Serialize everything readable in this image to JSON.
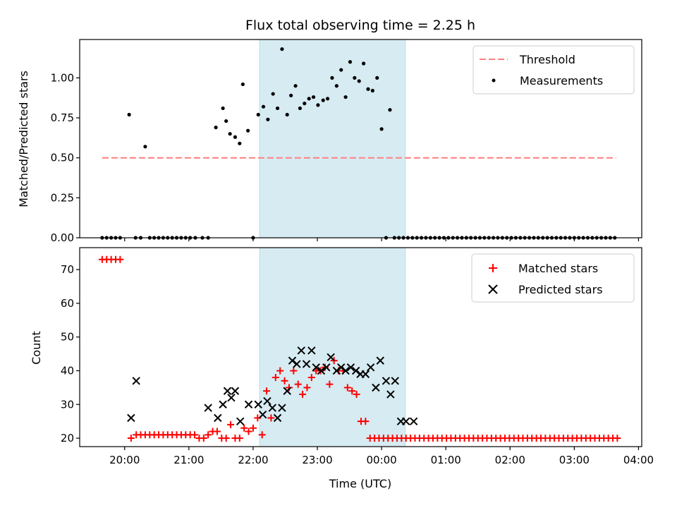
{
  "chart_data": [
    {
      "type": "scatter",
      "title": "Flux total observing time = 2.25 h",
      "ylabel": "Matched/Predicted stars",
      "xlabel": "",
      "xlim": [
        -0.7,
        8.05
      ],
      "ylim": [
        0,
        1.24
      ],
      "yticks": [
        0.0,
        0.25,
        0.5,
        0.75,
        1.0
      ],
      "ytick_labels": [
        "0.00",
        "0.25",
        "0.50",
        "0.75",
        "1.00"
      ],
      "xticks": [
        0,
        1,
        2,
        3,
        4,
        5,
        6,
        7,
        8
      ],
      "xtick_labels": [],
      "x_unit": "hours after 20:00 UTC",
      "shaded_span": [
        2.1,
        4.37
      ],
      "grid": false,
      "legend": {
        "position": "top-right",
        "entries": [
          "Threshold",
          "Measurements"
        ]
      },
      "threshold": {
        "name": "Threshold",
        "value": 0.5,
        "x_range": [
          -0.35,
          7.65
        ],
        "color": "#ff7f7f"
      },
      "series": [
        {
          "name": "Measurements",
          "color": "#000000",
          "x": [
            -0.35,
            -0.28,
            -0.21,
            -0.14,
            -0.07,
            0.07,
            0.17,
            0.25,
            0.32,
            0.39,
            0.46,
            0.53,
            0.6,
            0.67,
            0.74,
            0.81,
            0.88,
            0.95,
            1.02,
            1.1,
            1.21,
            1.3,
            1.42,
            1.53,
            1.58,
            1.64,
            1.72,
            1.79,
            1.84,
            1.92,
            2.0,
            2.08,
            2.16,
            2.23,
            2.31,
            2.38,
            2.45,
            2.53,
            2.59,
            2.66,
            2.73,
            2.8,
            2.87,
            2.94,
            3.01,
            3.09,
            3.16,
            3.23,
            3.3,
            3.37,
            3.44,
            3.51,
            3.58,
            3.65,
            3.72,
            3.79,
            3.86,
            3.93,
            4.0,
            4.07,
            4.13,
            4.2,
            4.27,
            4.34,
            4.41,
            4.48,
            4.55,
            4.62,
            4.69,
            4.76,
            4.83,
            4.9,
            4.97,
            5.04,
            5.11,
            5.18,
            5.25,
            5.32,
            5.39,
            5.46,
            5.53,
            5.6,
            5.67,
            5.74,
            5.81,
            5.88,
            5.95,
            6.02,
            6.09,
            6.16,
            6.23,
            6.3,
            6.37,
            6.44,
            6.51,
            6.58,
            6.65,
            6.72,
            6.79,
            6.86,
            6.93,
            7.0,
            7.07,
            7.14,
            7.21,
            7.28,
            7.35,
            7.42,
            7.49,
            7.56,
            7.63
          ],
          "y": [
            0,
            0,
            0,
            0,
            0,
            0.77,
            0,
            0,
            0.57,
            0,
            0,
            0,
            0,
            0,
            0,
            0,
            0,
            0,
            0,
            0,
            0,
            0,
            0.69,
            0.81,
            0.73,
            0.65,
            0.63,
            0.59,
            0.96,
            0.67,
            0,
            0.77,
            0.82,
            0.74,
            0.9,
            0.81,
            1.18,
            0.77,
            0.89,
            0.95,
            0.81,
            0.84,
            0.87,
            0.88,
            0.83,
            0.86,
            0.87,
            1.0,
            0.95,
            1.05,
            0.88,
            1.1,
            1.0,
            0.98,
            1.09,
            0.93,
            0.92,
            1.0,
            0.68,
            0,
            0.8,
            0,
            0,
            0,
            0,
            0,
            0,
            0,
            0,
            0,
            0,
            0,
            0,
            0,
            0,
            0,
            0,
            0,
            0,
            0,
            0,
            0,
            0,
            0,
            0,
            0,
            0,
            0,
            0,
            0,
            0,
            0,
            0,
            0,
            0,
            0,
            0,
            0,
            0,
            0,
            0,
            0,
            0,
            0,
            0,
            0,
            0,
            0,
            0,
            0,
            0
          ]
        }
      ]
    },
    {
      "type": "scatter",
      "title": "",
      "ylabel": "Count",
      "xlabel": "Time (UTC)",
      "xlim": [
        -0.7,
        8.05
      ],
      "ylim": [
        17.5,
        76.5
      ],
      "yticks": [
        20,
        30,
        40,
        50,
        60,
        70
      ],
      "ytick_labels": [
        "20",
        "30",
        "40",
        "50",
        "60",
        "70"
      ],
      "xticks": [
        0,
        1,
        2,
        3,
        4,
        5,
        6,
        7,
        8
      ],
      "xtick_labels": [
        "20:00",
        "21:00",
        "22:00",
        "23:00",
        "00:00",
        "01:00",
        "02:00",
        "03:00",
        "04:00"
      ],
      "x_unit": "hours after 20:00 UTC",
      "shaded_span": [
        2.1,
        4.37
      ],
      "grid": false,
      "legend": {
        "position": "top-right",
        "entries": [
          "Matched stars",
          "Predicted stars"
        ]
      },
      "series": [
        {
          "name": "Matched stars",
          "marker": "plus",
          "color": "#ff0000",
          "x": [
            -0.35,
            -0.28,
            -0.21,
            -0.14,
            -0.07,
            0.1,
            0.18,
            0.25,
            0.32,
            0.39,
            0.46,
            0.53,
            0.6,
            0.67,
            0.74,
            0.81,
            0.88,
            0.95,
            1.02,
            1.09,
            1.16,
            1.23,
            1.3,
            1.37,
            1.44,
            1.51,
            1.58,
            1.65,
            1.72,
            1.79,
            1.86,
            1.93,
            2.0,
            2.07,
            2.14,
            2.21,
            2.28,
            2.35,
            2.42,
            2.49,
            2.56,
            2.63,
            2.7,
            2.77,
            2.84,
            2.91,
            2.98,
            3.05,
            3.12,
            3.19,
            3.26,
            3.33,
            3.4,
            3.47,
            3.54,
            3.61,
            3.68,
            3.75,
            3.82,
            3.89,
            3.96,
            4.03,
            4.1,
            4.17,
            4.24,
            4.31,
            4.38,
            4.45,
            4.52,
            4.59,
            4.66,
            4.73,
            4.8,
            4.87,
            4.94,
            5.01,
            5.08,
            5.15,
            5.22,
            5.29,
            5.36,
            5.43,
            5.5,
            5.57,
            5.64,
            5.71,
            5.78,
            5.85,
            5.92,
            5.99,
            6.06,
            6.13,
            6.2,
            6.27,
            6.34,
            6.41,
            6.48,
            6.55,
            6.62,
            6.69,
            6.76,
            6.83,
            6.9,
            6.97,
            7.04,
            7.11,
            7.18,
            7.25,
            7.32,
            7.39,
            7.46,
            7.53,
            7.6,
            7.67
          ],
          "y": [
            73,
            73,
            73,
            73,
            73,
            20,
            21,
            21,
            21,
            21,
            21,
            21,
            21,
            21,
            21,
            21,
            21,
            21,
            21,
            21,
            20,
            20,
            21,
            22,
            22,
            20,
            20,
            24,
            20,
            20,
            23,
            22,
            23,
            26,
            21,
            34,
            26,
            38,
            40,
            37,
            35,
            40,
            36,
            33,
            35,
            38,
            40,
            40,
            41,
            36,
            43,
            40,
            40,
            35,
            34,
            33,
            25,
            25,
            20,
            20,
            20,
            20,
            20,
            20,
            20,
            20,
            20,
            20,
            20,
            20,
            20,
            20,
            20,
            20,
            20,
            20,
            20,
            20,
            20,
            20,
            20,
            20,
            20,
            20,
            20,
            20,
            20,
            20,
            20,
            20,
            20,
            20,
            20,
            20,
            20,
            20,
            20,
            20,
            20,
            20,
            20,
            20,
            20,
            20,
            20,
            20,
            20,
            20,
            20,
            20,
            20,
            20,
            20,
            20
          ]
        },
        {
          "name": "Predicted stars",
          "marker": "x",
          "color": "#000000",
          "x": [
            0.1,
            0.18,
            1.3,
            1.45,
            1.53,
            1.6,
            1.66,
            1.72,
            1.8,
            1.93,
            2.08,
            2.15,
            2.22,
            2.3,
            2.38,
            2.45,
            2.53,
            2.61,
            2.68,
            2.75,
            2.83,
            2.91,
            2.98,
            3.06,
            3.14,
            3.21,
            3.3,
            3.37,
            3.44,
            3.52,
            3.6,
            3.67,
            3.75,
            3.83,
            3.91,
            3.98,
            4.07,
            4.14,
            4.21,
            4.3,
            4.38,
            4.5
          ],
          "y": [
            26,
            37,
            29,
            26,
            30,
            34,
            32,
            34,
            25,
            30,
            30,
            27,
            31,
            29,
            26,
            29,
            34,
            43,
            42,
            46,
            42,
            46,
            41,
            40,
            41,
            44,
            40,
            41,
            40,
            41,
            40,
            39,
            39,
            41,
            35,
            43,
            37,
            33,
            37,
            25,
            25,
            25
          ]
        }
      ]
    }
  ]
}
